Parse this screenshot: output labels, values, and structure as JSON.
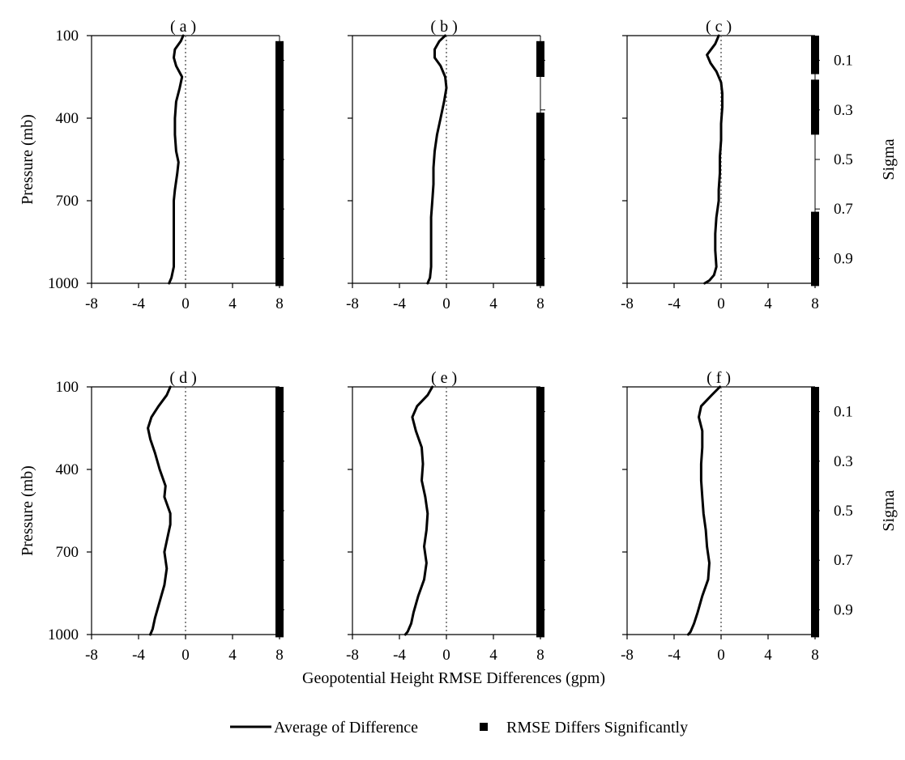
{
  "figure": {
    "x_title": "Geopotential Height RMSE Differences (gpm)",
    "y_title": "Pressure (mb)",
    "y2_title": "Sigma",
    "legend": [
      {
        "label": "Average of Difference",
        "marker": "line"
      },
      {
        "label": "RMSE Differs Significantly",
        "marker": "square"
      }
    ],
    "colors": {
      "line": "#000000",
      "significance": "#000000",
      "zero_line": "#666666",
      "axis": "#000000"
    }
  },
  "chart_data": {
    "type": "line",
    "shared": {
      "x_ticks": [
        "-8",
        "-4",
        "0",
        "4",
        "8"
      ],
      "xlim": [
        -8,
        8
      ],
      "y_ticks": [
        "100",
        "400",
        "700",
        "1000"
      ],
      "ylim": [
        100,
        1000
      ],
      "y_reversed": true,
      "sigma_ticks": [
        "0.1",
        "0.3",
        "0.5",
        "0.7",
        "0.9"
      ],
      "zero_reference_line": {
        "x": 0,
        "style": "dotted"
      },
      "significance_marker_x": 8
    },
    "panels": [
      {
        "label": "( a )",
        "series": [
          {
            "name": "Average of Difference",
            "points": [
              [
                -0.2,
                100
              ],
              [
                -0.4,
                120
              ],
              [
                -0.9,
                150
              ],
              [
                -1.0,
                180
              ],
              [
                -0.8,
                210
              ],
              [
                -0.3,
                250
              ],
              [
                -0.5,
                290
              ],
              [
                -0.8,
                340
              ],
              [
                -0.9,
                400
              ],
              [
                -0.9,
                460
              ],
              [
                -0.8,
                520
              ],
              [
                -0.6,
                560
              ],
              [
                -0.7,
                600
              ],
              [
                -0.9,
                660
              ],
              [
                -1.0,
                700
              ],
              [
                -1.0,
                760
              ],
              [
                -1.0,
                820
              ],
              [
                -1.0,
                880
              ],
              [
                -1.0,
                940
              ],
              [
                -1.2,
                980
              ],
              [
                -1.4,
                1000
              ]
            ]
          }
        ],
        "significant_ranges": [
          [
            120,
            1010
          ]
        ]
      },
      {
        "label": "( b )",
        "series": [
          {
            "name": "Average of Difference",
            "points": [
              [
                -0.1,
                100
              ],
              [
                -0.6,
                120
              ],
              [
                -1.0,
                150
              ],
              [
                -1.0,
                180
              ],
              [
                -0.5,
                210
              ],
              [
                -0.1,
                250
              ],
              [
                0.0,
                290
              ],
              [
                -0.2,
                340
              ],
              [
                -0.5,
                400
              ],
              [
                -0.8,
                460
              ],
              [
                -1.0,
                520
              ],
              [
                -1.1,
                580
              ],
              [
                -1.1,
                640
              ],
              [
                -1.2,
                700
              ],
              [
                -1.3,
                760
              ],
              [
                -1.3,
                820
              ],
              [
                -1.3,
                880
              ],
              [
                -1.3,
                940
              ],
              [
                -1.4,
                980
              ],
              [
                -1.6,
                1000
              ]
            ]
          }
        ],
        "significant_ranges": [
          [
            120,
            250
          ],
          [
            380,
            1010
          ]
        ]
      },
      {
        "label": "( c )",
        "series": [
          {
            "name": "Average of Difference",
            "points": [
              [
                -0.2,
                100
              ],
              [
                -0.5,
                130
              ],
              [
                -1.2,
                170
              ],
              [
                -0.9,
                200
              ],
              [
                -0.4,
                230
              ],
              [
                0.0,
                270
              ],
              [
                0.1,
                310
              ],
              [
                0.1,
                360
              ],
              [
                0.0,
                420
              ],
              [
                0.0,
                480
              ],
              [
                -0.1,
                540
              ],
              [
                -0.1,
                600
              ],
              [
                -0.2,
                660
              ],
              [
                -0.2,
                700
              ],
              [
                -0.4,
                760
              ],
              [
                -0.5,
                820
              ],
              [
                -0.5,
                880
              ],
              [
                -0.4,
                940
              ],
              [
                -0.6,
                970
              ],
              [
                -1.0,
                990
              ],
              [
                -1.4,
                1000
              ]
            ]
          }
        ],
        "significant_ranges": [
          [
            100,
            240
          ],
          [
            260,
            460
          ],
          [
            740,
            1010
          ]
        ]
      },
      {
        "label": "( d )",
        "series": [
          {
            "name": "Average of Difference",
            "points": [
              [
                -1.3,
                100
              ],
              [
                -1.6,
                130
              ],
              [
                -2.3,
                170
              ],
              [
                -2.9,
                210
              ],
              [
                -3.2,
                250
              ],
              [
                -3.0,
                290
              ],
              [
                -2.6,
                340
              ],
              [
                -2.2,
                400
              ],
              [
                -1.7,
                460
              ],
              [
                -1.8,
                500
              ],
              [
                -1.3,
                560
              ],
              [
                -1.3,
                600
              ],
              [
                -1.6,
                660
              ],
              [
                -1.8,
                700
              ],
              [
                -1.6,
                760
              ],
              [
                -1.8,
                820
              ],
              [
                -2.2,
                880
              ],
              [
                -2.6,
                940
              ],
              [
                -2.8,
                980
              ],
              [
                -3.0,
                1000
              ]
            ]
          }
        ],
        "significant_ranges": [
          [
            100,
            1010
          ]
        ]
      },
      {
        "label": "( e )",
        "series": [
          {
            "name": "Average of Difference",
            "points": [
              [
                -1.2,
                100
              ],
              [
                -1.6,
                130
              ],
              [
                -2.5,
                170
              ],
              [
                -2.9,
                210
              ],
              [
                -2.6,
                260
              ],
              [
                -2.1,
                320
              ],
              [
                -2.0,
                380
              ],
              [
                -2.1,
                440
              ],
              [
                -1.8,
                500
              ],
              [
                -1.6,
                560
              ],
              [
                -1.7,
                620
              ],
              [
                -1.9,
                680
              ],
              [
                -1.7,
                740
              ],
              [
                -1.9,
                800
              ],
              [
                -2.4,
                860
              ],
              [
                -2.8,
                920
              ],
              [
                -3.0,
                960
              ],
              [
                -3.3,
                990
              ],
              [
                -3.5,
                1000
              ]
            ]
          }
        ],
        "significant_ranges": [
          [
            100,
            1010
          ]
        ]
      },
      {
        "label": "( f )",
        "series": [
          {
            "name": "Average of Difference",
            "points": [
              [
                -0.1,
                100
              ],
              [
                -0.8,
                130
              ],
              [
                -1.7,
                170
              ],
              [
                -1.9,
                210
              ],
              [
                -1.6,
                260
              ],
              [
                -1.6,
                320
              ],
              [
                -1.7,
                380
              ],
              [
                -1.7,
                440
              ],
              [
                -1.6,
                500
              ],
              [
                -1.5,
                560
              ],
              [
                -1.3,
                620
              ],
              [
                -1.2,
                680
              ],
              [
                -1.0,
                740
              ],
              [
                -1.1,
                800
              ],
              [
                -1.6,
                860
              ],
              [
                -2.0,
                920
              ],
              [
                -2.3,
                960
              ],
              [
                -2.6,
                990
              ],
              [
                -2.8,
                1000
              ]
            ]
          }
        ],
        "significant_ranges": [
          [
            100,
            1010
          ]
        ]
      }
    ]
  }
}
